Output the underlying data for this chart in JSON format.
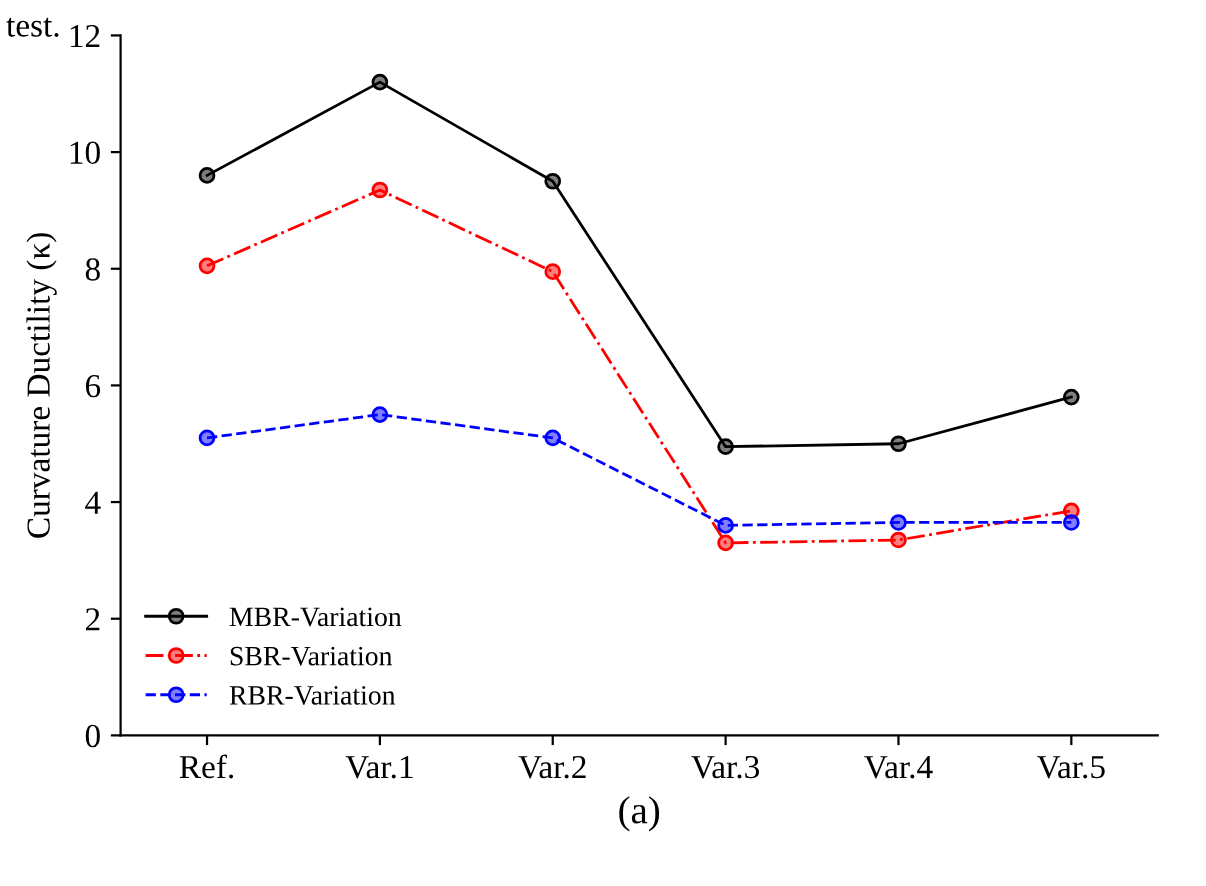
{
  "chart_data": {
    "type": "line",
    "xlabel": "(a)",
    "ylabel": "Curvature Ductility (κ)",
    "annotations": [
      "test."
    ],
    "categories": [
      "Ref.",
      "Var.1",
      "Var.2",
      "Var.3",
      "Var.4",
      "Var.5"
    ],
    "series": [
      {
        "name": "MBR-Variation",
        "color": "#000000",
        "line_style": "solid",
        "values": [
          9.6,
          11.2,
          9.5,
          4.95,
          5.0,
          5.8
        ]
      },
      {
        "name": "SBR-Variation",
        "color": "#ff0000",
        "line_style": "dashdot",
        "values": [
          8.05,
          9.35,
          7.95,
          3.3,
          3.35,
          3.85
        ]
      },
      {
        "name": "RBR-Variation",
        "color": "#0000ff",
        "line_style": "dashed",
        "values": [
          5.1,
          5.5,
          5.1,
          3.6,
          3.65,
          3.65
        ]
      }
    ],
    "ylim": [
      0,
      12
    ],
    "yticks": [
      0,
      2,
      4,
      6,
      8,
      10,
      12
    ],
    "marker": "circle",
    "legend": "bottom left",
    "grid": false
  }
}
